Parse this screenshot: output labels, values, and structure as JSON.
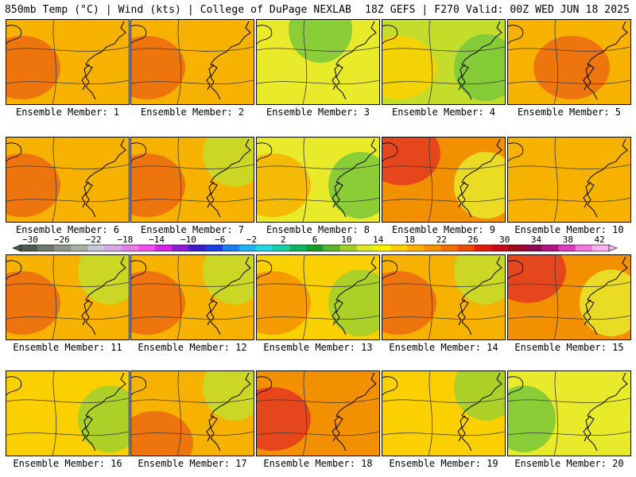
{
  "header": {
    "left": "850mb Temp (°C) | Wind (kts) | College of DuPage NEXLAB",
    "right": "18Z GEFS | F270 Valid: 00Z WED JUN 18 2025"
  },
  "panels": [
    {
      "caption": "Ensemble Member: 1",
      "mean_temp_c": 18,
      "warm_anomaly": "west",
      "cool_anomaly": "none"
    },
    {
      "caption": "Ensemble Member: 2",
      "mean_temp_c": 18,
      "warm_anomaly": "west",
      "cool_anomaly": "none"
    },
    {
      "caption": "Ensemble Member: 3",
      "mean_temp_c": 14,
      "warm_anomaly": "none",
      "cool_anomaly": "north"
    },
    {
      "caption": "Ensemble Member: 4",
      "mean_temp_c": 12,
      "warm_anomaly": "west",
      "cool_anomaly": "east"
    },
    {
      "caption": "Ensemble Member: 5",
      "mean_temp_c": 18,
      "warm_anomaly": "center",
      "cool_anomaly": "none"
    },
    {
      "caption": "Ensemble Member: 6",
      "mean_temp_c": 18,
      "warm_anomaly": "west",
      "cool_anomaly": "none"
    },
    {
      "caption": "Ensemble Member: 7",
      "mean_temp_c": 18,
      "warm_anomaly": "west",
      "cool_anomaly": "northeast"
    },
    {
      "caption": "Ensemble Member: 8",
      "mean_temp_c": 14,
      "warm_anomaly": "west",
      "cool_anomaly": "east"
    },
    {
      "caption": "Ensemble Member: 9",
      "mean_temp_c": 20,
      "warm_anomaly": "northwest",
      "cool_anomaly": "east"
    },
    {
      "caption": "Ensemble Member: 10",
      "mean_temp_c": 18,
      "warm_anomaly": "none",
      "cool_anomaly": "none"
    },
    {
      "caption": "Ensemble Member: 11",
      "mean_temp_c": 18,
      "warm_anomaly": "west",
      "cool_anomaly": "northeast"
    },
    {
      "caption": "Ensemble Member: 12",
      "mean_temp_c": 18,
      "warm_anomaly": "west",
      "cool_anomaly": "northeast"
    },
    {
      "caption": "Ensemble Member: 13",
      "mean_temp_c": 16,
      "warm_anomaly": "west",
      "cool_anomaly": "east"
    },
    {
      "caption": "Ensemble Member: 14",
      "mean_temp_c": 18,
      "warm_anomaly": "west",
      "cool_anomaly": "northeast"
    },
    {
      "caption": "Ensemble Member: 15",
      "mean_temp_c": 20,
      "warm_anomaly": "northwest",
      "cool_anomaly": "east"
    },
    {
      "caption": "Ensemble Member: 16",
      "mean_temp_c": 16,
      "warm_anomaly": "none",
      "cool_anomaly": "east"
    },
    {
      "caption": "Ensemble Member: 17",
      "mean_temp_c": 18,
      "warm_anomaly": "southwest",
      "cool_anomaly": "northeast"
    },
    {
      "caption": "Ensemble Member: 18",
      "mean_temp_c": 20,
      "warm_anomaly": "west",
      "cool_anomaly": "none"
    },
    {
      "caption": "Ensemble Member: 19",
      "mean_temp_c": 16,
      "warm_anomaly": "none",
      "cool_anomaly": "northeast"
    },
    {
      "caption": "Ensemble Member: 20",
      "mean_temp_c": 14,
      "warm_anomaly": "none",
      "cool_anomaly": "west"
    }
  ],
  "colorbar": {
    "labels": [
      "-30",
      "-26",
      "-22",
      "-18",
      "-14",
      "-10",
      "-6",
      "-2",
      "2",
      "6",
      "10",
      "14",
      "18",
      "22",
      "26",
      "30",
      "34",
      "38",
      "42"
    ],
    "colors": [
      "#4d5a4f",
      "#6e786e",
      "#8d958d",
      "#a9aea9",
      "#c5c9d8",
      "#d7a7e8",
      "#e47fe8",
      "#f24ef0",
      "#d224e6",
      "#8a1fd6",
      "#3b1ec8",
      "#1f3ce0",
      "#1c7cf0",
      "#20b4f4",
      "#22d8e0",
      "#19cfa3",
      "#12b464",
      "#199b2c",
      "#5cb52a",
      "#a3cf2a",
      "#dde82a",
      "#fbf200",
      "#fccf00",
      "#fbb000",
      "#f69200",
      "#f06f00",
      "#eb4a00",
      "#e41a10",
      "#c80c18",
      "#a00a20",
      "#8c0a50",
      "#b0157f",
      "#dc3ac0",
      "#f278e0",
      "#f8b4ee"
    ]
  }
}
